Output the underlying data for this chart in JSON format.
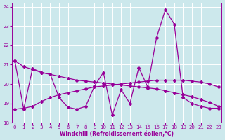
{
  "x": [
    0,
    1,
    2,
    3,
    4,
    5,
    6,
    7,
    8,
    9,
    10,
    11,
    12,
    13,
    14,
    15,
    16,
    17,
    18,
    19,
    20,
    21,
    22,
    23
  ],
  "series1": [
    21.2,
    18.7,
    20.8,
    20.6,
    20.5,
    19.3,
    18.8,
    18.7,
    18.85,
    19.9,
    20.6,
    18.4,
    19.7,
    19.0,
    20.85,
    19.85,
    22.4,
    23.85,
    23.1,
    19.3,
    19.0,
    18.85,
    18.75,
    18.75
  ],
  "series2": [
    21.2,
    20.9,
    20.75,
    20.6,
    20.5,
    20.4,
    20.3,
    20.2,
    20.15,
    20.1,
    20.05,
    20.0,
    19.95,
    19.9,
    19.85,
    19.8,
    19.75,
    19.65,
    19.55,
    19.45,
    19.35,
    19.2,
    19.05,
    18.85
  ],
  "series3": [
    18.7,
    18.75,
    18.85,
    19.1,
    19.3,
    19.45,
    19.55,
    19.65,
    19.75,
    19.85,
    19.9,
    19.95,
    20.0,
    20.05,
    20.1,
    20.15,
    20.2,
    20.2,
    20.2,
    20.2,
    20.15,
    20.1,
    20.0,
    19.85
  ],
  "color": "#990099",
  "bgcolor": "#cce8ec",
  "xlim": [
    -0.3,
    23.3
  ],
  "ylim": [
    18,
    24.2
  ],
  "yticks": [
    18,
    19,
    20,
    21,
    22,
    23,
    24
  ],
  "xticks": [
    0,
    1,
    2,
    3,
    4,
    5,
    6,
    7,
    8,
    9,
    10,
    11,
    12,
    13,
    14,
    15,
    16,
    17,
    18,
    19,
    20,
    21,
    22,
    23
  ],
  "xlabel": "Windchill (Refroidissement éolien,°C)",
  "marker": "D",
  "markersize": 2.0,
  "linewidth": 0.9
}
